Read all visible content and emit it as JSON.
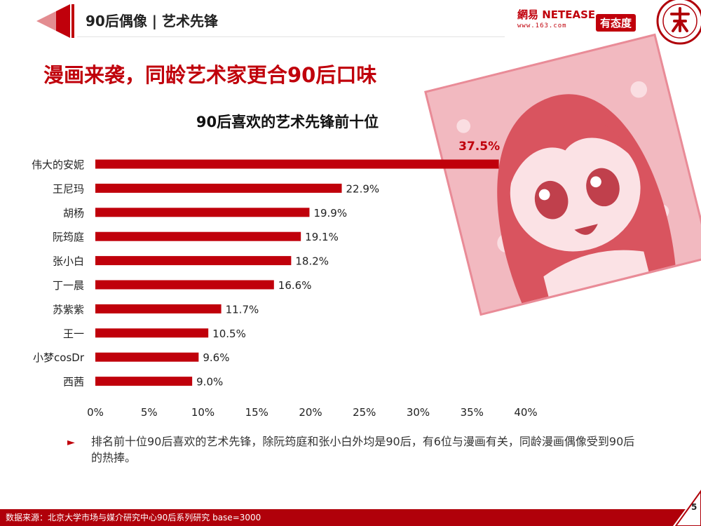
{
  "header": {
    "section_title": "90后偶像 | 艺术先锋",
    "netease_brand": "網易 NETEASE",
    "netease_url": "www.163.com",
    "partner_logo": "有态度"
  },
  "slide": {
    "title": "漫画来袭，同龄艺术家更合90后口味"
  },
  "chart_data": {
    "type": "bar",
    "orientation": "horizontal",
    "title": "90后喜欢的艺术先锋前十位",
    "categories": [
      "伟大的安妮",
      "王尼玛",
      "胡杨",
      "阮筠庭",
      "张小白",
      "丁一晨",
      "苏紫紫",
      "王一",
      "小梦cosDr",
      "西茜"
    ],
    "values": [
      37.5,
      22.9,
      19.9,
      19.1,
      18.2,
      16.6,
      11.7,
      10.5,
      9.6,
      9.0
    ],
    "value_labels": [
      "37.5%",
      "22.9%",
      "19.9%",
      "19.1%",
      "18.2%",
      "16.6%",
      "11.7%",
      "10.5%",
      "9.6%",
      "9.0%"
    ],
    "xlim": [
      0,
      40
    ],
    "x_ticks": [
      "0%",
      "5%",
      "10%",
      "15%",
      "20%",
      "25%",
      "30%",
      "35%",
      "40%"
    ],
    "grid": false,
    "bar_color": "#c0000b",
    "highlight_label_color": "#c0000b"
  },
  "note": {
    "marker": "►",
    "text": "排名前十位90后喜欢的艺术先锋，除阮筠庭和张小白外均是90后，有6位与漫画有关，同龄漫画偶像受到90后的热捧。"
  },
  "footer": {
    "source": "数据来源：北京大学市场与媒介研究中心90后系列研究 base=3000",
    "page_number": "5"
  },
  "colors": {
    "brand_red": "#c0000b",
    "dark_red": "#b0000a",
    "illustration_pink": "#f2b9c0"
  },
  "icons": {
    "seal": "peking-university-seal-icon",
    "header_decoration": "triangle-arrow-decoration-icon"
  }
}
